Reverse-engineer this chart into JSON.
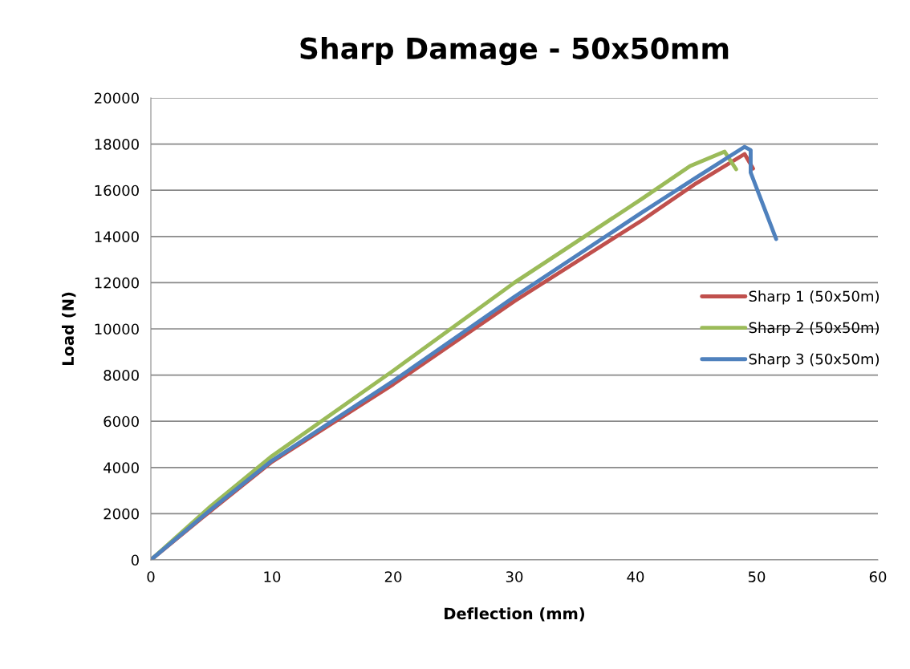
{
  "chart_data": {
    "type": "line",
    "title": "Sharp Damage - 50x50mm",
    "xlabel": "Deflection (mm)",
    "ylabel": "Load (N)",
    "xlim": [
      0,
      60
    ],
    "xticks": [
      0,
      10,
      20,
      30,
      40,
      50,
      60
    ],
    "ylim": [
      0,
      20000
    ],
    "yticks": [
      0,
      2000,
      4000,
      6000,
      8000,
      10000,
      12000,
      14000,
      16000,
      18000,
      20000
    ],
    "grid": "y",
    "legend": "right",
    "marker": "none",
    "line_style": "solid",
    "series": [
      {
        "name": "Sharp 1 (50x50m)",
        "color": "#c0504d",
        "x": [
          0,
          5,
          10,
          20,
          30,
          40.5,
          45,
          49.0,
          49.7
        ],
        "values": [
          0,
          2150,
          4250,
          7600,
          11200,
          14690,
          16300,
          17570,
          16940
        ]
      },
      {
        "name": "Sharp 2 (50x50m)",
        "color": "#9bbb59",
        "x": [
          0,
          5,
          10,
          20,
          30,
          40.5,
          44.5,
          47.35,
          48.3
        ],
        "values": [
          0,
          2350,
          4500,
          8190,
          12000,
          15620,
          17050,
          17670,
          16910
        ]
      },
      {
        "name": "Sharp 3 (50x50m)",
        "color": "#4f81bd",
        "x": [
          0,
          5,
          10,
          20,
          30,
          40.5,
          45,
          49.0,
          49.5,
          49.5,
          51.6
        ],
        "values": [
          0,
          2200,
          4300,
          7740,
          11390,
          15030,
          16550,
          17880,
          17740,
          16770,
          13890
        ]
      }
    ]
  }
}
